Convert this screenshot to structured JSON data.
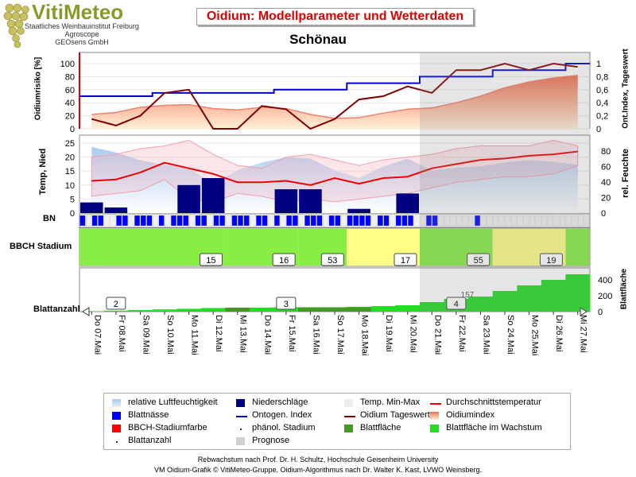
{
  "logo": {
    "name": "VitiMeteo",
    "lines": [
      "Staatliches Weinbauinstitut Freiburg",
      "Agroscope",
      "GEOsens GmbH"
    ]
  },
  "title": "Oidium: Modellparameter und Wetterdaten",
  "location": "Schönau",
  "colors": {
    "title_red": "#dd0000",
    "rh_fill": "#a8c8ee",
    "precip": "#000080",
    "blattnaesse": "#0000ff",
    "ontogen": "#0000cc",
    "oidium_tageswert": "#800000",
    "oidiumindex": "#f07050",
    "temp_avg": "#ee0000",
    "temp_band": "#f0b8c0",
    "bbch_green": "#88ee44",
    "bbch_yellow": "#ffff88",
    "leaf_area": "#22dd22",
    "prognose": "#d0d0d0"
  },
  "panels": {
    "risk": {
      "ylabel_left": "Oidiumrisiko [%]",
      "ylabel_right": "Ont.Index, Tageswert",
      "left_ticks": [
        "0",
        "20",
        "40",
        "60",
        "80",
        "100"
      ],
      "right_ticks": [
        "0",
        "0,2",
        "0,4",
        "0,6",
        "0,8",
        "1"
      ]
    },
    "weather": {
      "ylabel_left": "Temp, Nied",
      "ylabel_right": "rel. Feuchte",
      "left_ticks": [
        "0",
        "5",
        "10",
        "15",
        "20",
        "25"
      ],
      "right_ticks": [
        "0",
        "20",
        "40",
        "60",
        "80"
      ]
    },
    "bn": {
      "label": "BN"
    },
    "bbch": {
      "label": "BBCH Stadium"
    },
    "leaf": {
      "left_label": "Blattanzahl",
      "ylabel_right": "Blattfläche",
      "right_ticks": [
        "0",
        "200",
        "400"
      ],
      "extra_label": "157"
    }
  },
  "chart_data": {
    "type": "line",
    "categories": [
      "Do 07.Mai",
      "Fr 08.Mai",
      "Sa 09.Mai",
      "So 10.Mai",
      "Mo 11.Mai",
      "Di 12.Mai",
      "Mi 13.Mai",
      "Do 14.Mai",
      "Fr 15.Mai",
      "Sa 16.Mai",
      "So 17.Mai",
      "Mo 18.Mai",
      "Di 19.Mai",
      "Mi 20.Mai",
      "Do 21.Mai",
      "Fr 22.Mai",
      "Sa 23.Mai",
      "So 24.Mai",
      "Mo 25.Mai",
      "Di 26.Mai",
      "Mi 27.Mai"
    ],
    "prognose_from_index": 14,
    "oidiumindex_percent": [
      22,
      25,
      33,
      36,
      37,
      31,
      29,
      33,
      31,
      22,
      16,
      17,
      24,
      30,
      32,
      40,
      50,
      63,
      72,
      78,
      82
    ],
    "ontogen_index": [
      0.5,
      0.5,
      0.5,
      0.55,
      0.55,
      0.55,
      0.55,
      0.55,
      0.6,
      0.6,
      0.6,
      0.7,
      0.7,
      0.7,
      0.8,
      0.8,
      0.8,
      0.9,
      0.9,
      0.9,
      1.0
    ],
    "oidium_tageswert": [
      0.15,
      0.05,
      0.2,
      0.55,
      0.6,
      0.0,
      0.0,
      0.35,
      0.3,
      0.0,
      0.15,
      0.45,
      0.5,
      0.65,
      0.55,
      0.9,
      0.9,
      1.0,
      0.9,
      1.0,
      0.95
    ],
    "rel_feuchte": [
      85,
      78,
      68,
      62,
      58,
      38,
      55,
      65,
      72,
      70,
      55,
      45,
      60,
      70,
      55,
      58,
      60,
      65,
      68,
      66,
      62
    ],
    "niederschlag": [
      3.8,
      2.0,
      0,
      0,
      10.0,
      12.5,
      0,
      0,
      8.5,
      8.5,
      0,
      1.5,
      0,
      7.0,
      0,
      0,
      0,
      0,
      0,
      0,
      0
    ],
    "temp_avg": [
      11.5,
      12,
      14.5,
      18,
      16,
      14,
      11,
      11,
      11.5,
      10,
      12.5,
      10.5,
      12.5,
      13,
      16,
      17.5,
      19,
      19.5,
      20.5,
      21,
      22
    ],
    "temp_max": [
      20,
      21,
      23,
      24,
      26,
      21,
      17,
      16,
      20,
      21,
      19,
      17,
      19,
      20,
      21,
      23,
      24,
      24,
      24,
      26,
      24
    ],
    "temp_min": [
      6,
      7,
      8,
      12,
      5,
      4,
      7,
      6,
      4,
      5,
      4,
      5,
      6,
      7,
      9,
      11,
      12,
      13,
      13,
      14,
      17
    ],
    "bbch_stages": [
      {
        "label": "15",
        "from": 0,
        "to": 6,
        "color": "green"
      },
      {
        "label": "16",
        "from": 6,
        "to": 9,
        "color": "green"
      },
      {
        "label": "53",
        "from": 9,
        "to": 11,
        "color": "green"
      },
      {
        "label": "17",
        "from": 11,
        "to": 14,
        "color": "yellow"
      },
      {
        "label": "55",
        "from": 14,
        "to": 17,
        "color": "green"
      },
      {
        "label": "19",
        "from": 17,
        "to": 20,
        "color": "yellow"
      }
    ],
    "blattanzahl_markers": [
      {
        "label": "2",
        "at": 1.5
      },
      {
        "label": "3",
        "at": 8.5
      },
      {
        "label": "4",
        "at": 15.5
      }
    ],
    "blattflaeche": [
      5,
      12,
      20,
      28,
      36,
      45,
      50,
      50,
      55,
      55,
      55,
      60,
      70,
      80,
      120,
      160,
      190,
      260,
      330,
      400,
      470
    ],
    "blattnaesse": [
      1,
      0,
      1,
      1,
      0,
      0,
      1,
      1,
      0,
      1,
      1,
      1,
      0,
      1,
      0,
      1,
      1,
      1,
      0,
      1,
      1,
      0,
      1,
      1,
      0,
      1,
      1,
      1,
      0,
      1,
      1,
      0,
      1,
      0,
      1,
      1,
      0,
      1,
      1,
      1,
      0,
      1,
      1,
      0,
      1,
      1,
      1,
      1,
      0,
      1,
      1,
      0,
      1,
      1,
      1,
      0,
      0,
      1,
      1,
      0,
      0,
      0,
      0,
      0,
      0,
      1,
      0,
      0,
      0,
      0,
      0,
      0,
      0,
      0,
      0,
      0,
      0,
      0,
      0,
      0,
      0,
      0,
      0,
      0
    ]
  },
  "legend": [
    {
      "label": "relative Luftfeuchtigkeit",
      "symbol": "rh"
    },
    {
      "label": "Niederschläge",
      "symbol": "precip"
    },
    {
      "label": "Temp. Min-Max",
      "symbol": "tminmax"
    },
    {
      "label": "Durchschnittstemperatur",
      "symbol": "tavg"
    },
    {
      "label": "Blattnässe",
      "symbol": "bn"
    },
    {
      "label": "Ontogen. Index",
      "symbol": "ont"
    },
    {
      "label": "Oidium Tageswert",
      "symbol": "otw"
    },
    {
      "label": "Oidiumindex",
      "symbol": "oidx"
    },
    {
      "label": "BBCH-Stadiumfarbe",
      "symbol": "bbch"
    },
    {
      "label": "phänol. Stadium",
      "symbol": "dot"
    },
    {
      "label": "Blattfläche",
      "symbol": "leafdark"
    },
    {
      "label": "Blattfläche im Wachstum",
      "symbol": "leafgrow"
    },
    {
      "label": "Blattanzahl",
      "symbol": "dot"
    },
    {
      "label": "Prognose",
      "symbol": "prog"
    }
  ],
  "footer": {
    "line1": "Rebwachstum nach Prof. Dr. H. Schultz, Hochschule Geisenheim University",
    "line2": "VM Oidium-Grafik © VitiMeteo-Gruppe. Oidium-Algorithmus nach Dr. Walter K. Kast, LVWO Weinsberg."
  }
}
